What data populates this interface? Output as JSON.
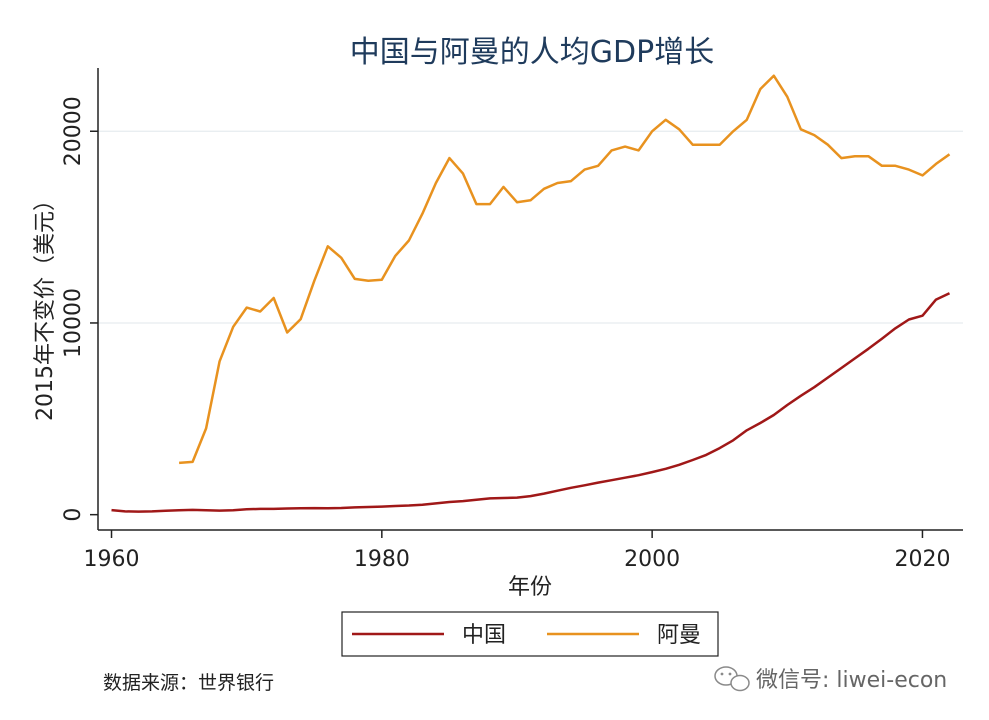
{
  "chart_data": {
    "type": "line",
    "title": "中国与阿曼的人均GDP增长",
    "xlabel": "年份",
    "ylabel": "2015年不变价（美元）",
    "xlim": [
      1959,
      2023
    ],
    "ylim": [
      -800,
      23300
    ],
    "x_ticks": [
      "1960",
      "1980",
      "2000",
      "2020"
    ],
    "y_ticks": [
      "0",
      "10000",
      "20000"
    ],
    "grid": true,
    "legend_position": "bottom",
    "series": [
      {
        "name": "中国",
        "color": "#a01818",
        "x": [
          1960,
          1961,
          1962,
          1963,
          1964,
          1965,
          1966,
          1967,
          1968,
          1969,
          1970,
          1971,
          1972,
          1973,
          1974,
          1975,
          1976,
          1977,
          1978,
          1979,
          1980,
          1981,
          1982,
          1983,
          1984,
          1985,
          1986,
          1987,
          1988,
          1989,
          1990,
          1991,
          1992,
          1993,
          1994,
          1995,
          1996,
          1997,
          1998,
          1999,
          2000,
          2001,
          2002,
          2003,
          2004,
          2005,
          2006,
          2007,
          2008,
          2009,
          2010,
          2011,
          2012,
          2013,
          2014,
          2015,
          2016,
          2017,
          2018,
          2019,
          2020,
          2021,
          2022
        ],
        "values": [
          240,
          170,
          160,
          170,
          200,
          230,
          250,
          230,
          210,
          230,
          280,
          300,
          300,
          320,
          330,
          340,
          330,
          350,
          380,
          400,
          420,
          450,
          480,
          520,
          590,
          660,
          710,
          780,
          850,
          870,
          890,
          970,
          1100,
          1250,
          1400,
          1530,
          1670,
          1800,
          1930,
          2060,
          2220,
          2390,
          2600,
          2850,
          3120,
          3470,
          3880,
          4400,
          4780,
          5200,
          5720,
          6200,
          6650,
          7150,
          7650,
          8150,
          8650,
          9180,
          9720,
          10180,
          10380,
          11220,
          11550
        ]
      },
      {
        "name": "阿曼",
        "color": "#e8921f",
        "x": [
          1965,
          1966,
          1967,
          1968,
          1969,
          1970,
          1971,
          1972,
          1973,
          1974,
          1975,
          1976,
          1977,
          1978,
          1979,
          1980,
          1981,
          1982,
          1983,
          1984,
          1985,
          1986,
          1987,
          1988,
          1989,
          1990,
          1991,
          1992,
          1993,
          1994,
          1995,
          1996,
          1997,
          1998,
          1999,
          2000,
          2001,
          2002,
          2003,
          2004,
          2005,
          2006,
          2007,
          2008,
          2009,
          2010,
          2011,
          2012,
          2013,
          2014,
          2015,
          2016,
          2017,
          2018,
          2019,
          2020,
          2021,
          2022
        ],
        "values": [
          2700,
          2750,
          4500,
          8000,
          9800,
          10800,
          10600,
          11300,
          9500,
          10200,
          12200,
          14000,
          13400,
          12300,
          12200,
          12250,
          13500,
          14300,
          15700,
          17300,
          18600,
          17800,
          16200,
          16200,
          17100,
          16300,
          16400,
          17000,
          17300,
          17400,
          18000,
          18200,
          19000,
          19200,
          19000,
          20000,
          20600,
          20100,
          19300,
          19300,
          19300,
          20000,
          20600,
          22200,
          22900,
          21800,
          20100,
          19800,
          19300,
          18600,
          18700,
          18700,
          18200,
          18200,
          18000,
          17700,
          18300,
          18800
        ]
      }
    ],
    "note": "数据来源：世界银行",
    "watermark": "微信号: liwei-econ"
  }
}
